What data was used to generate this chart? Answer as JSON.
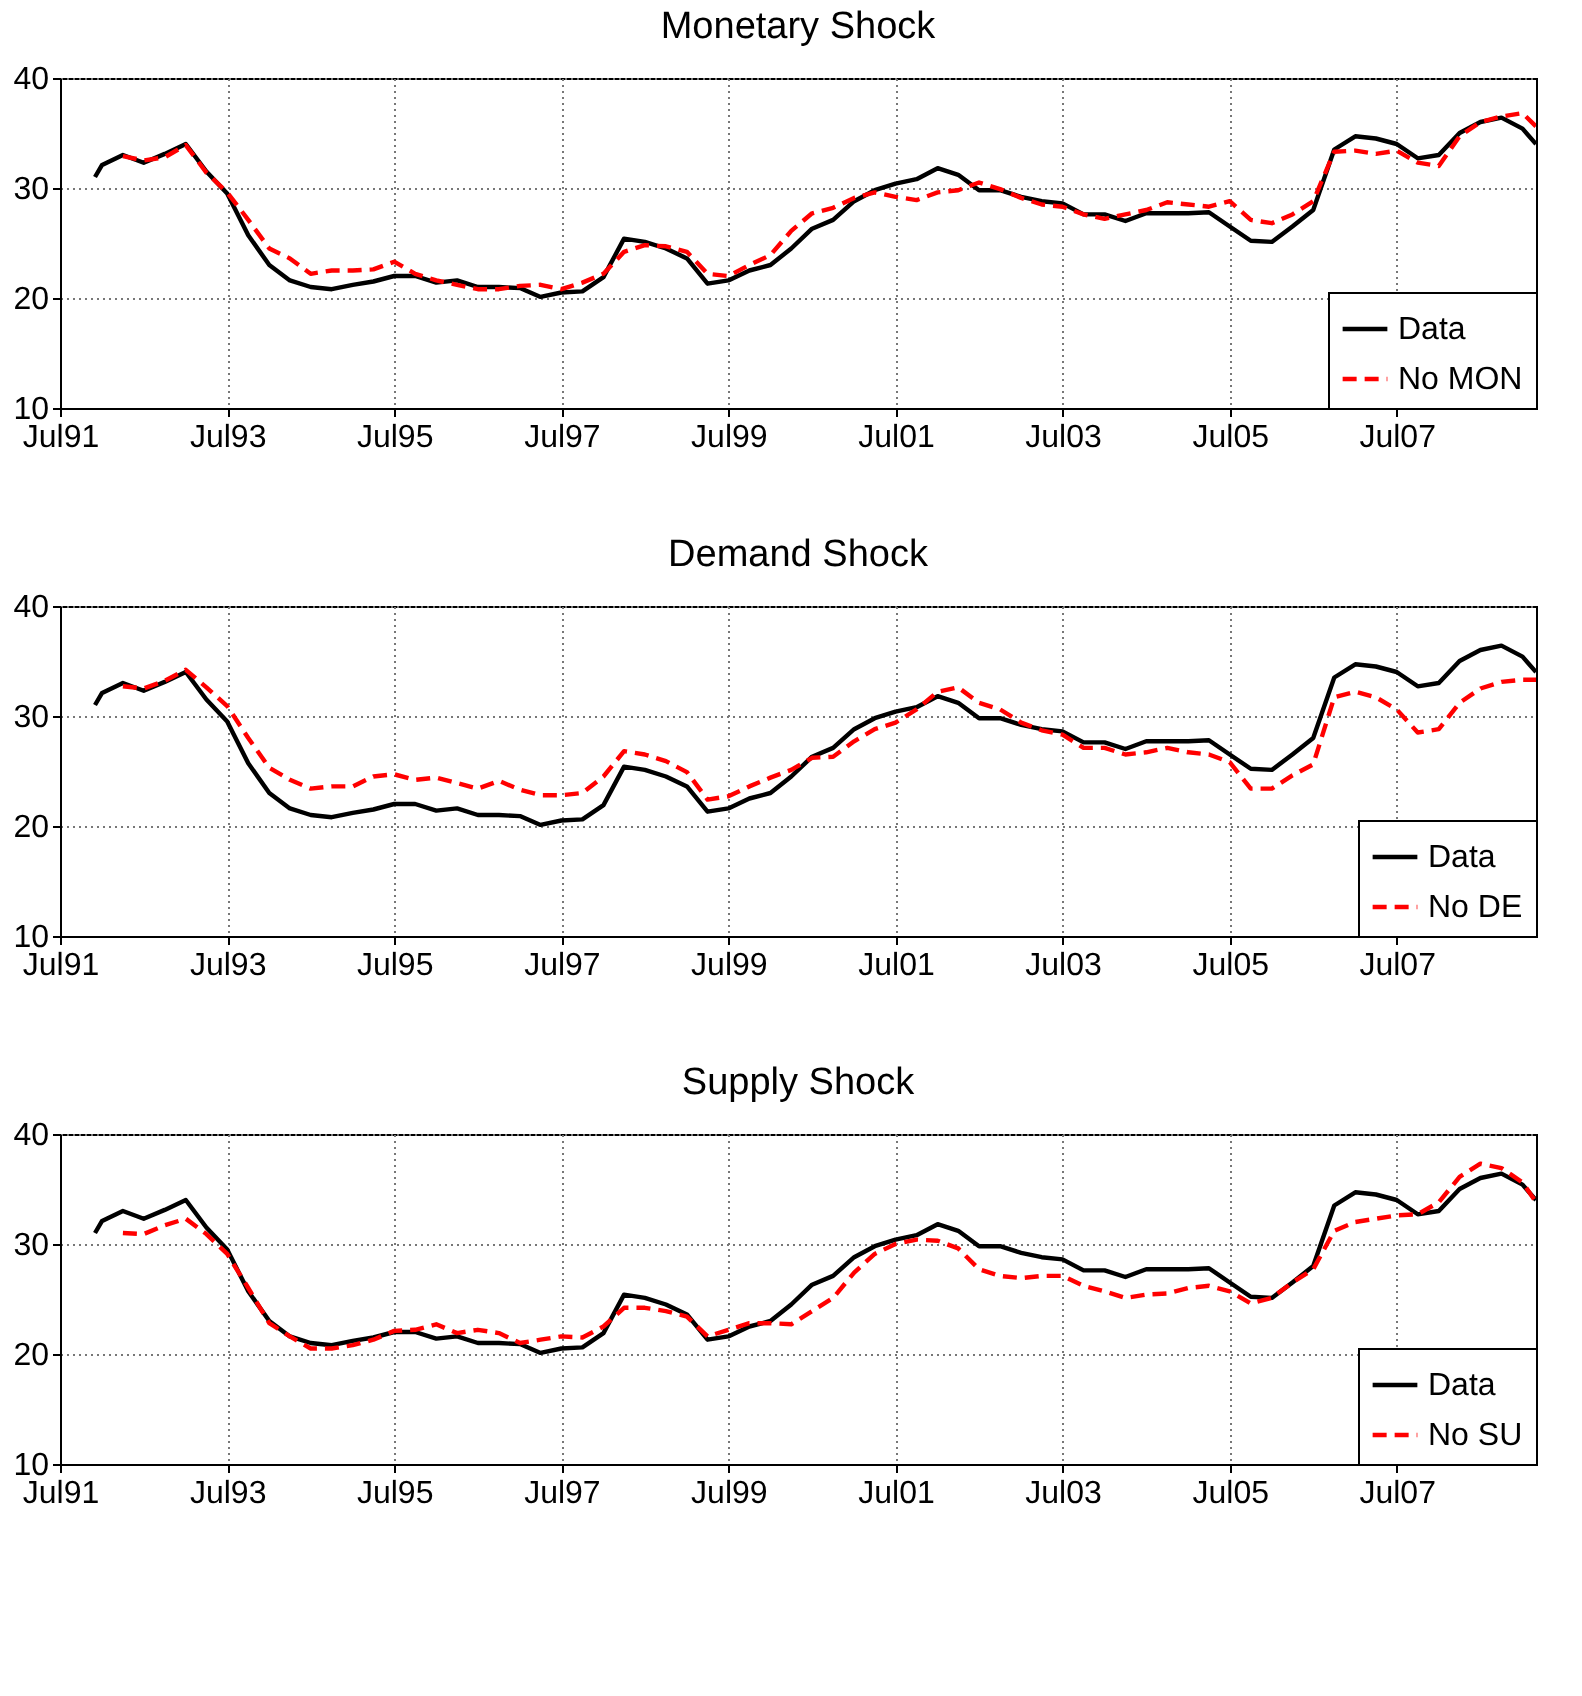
{
  "chart_data": [
    {
      "type": "line",
      "title": "Monetary Shock",
      "xlim": [
        "1991-07",
        "2009-03"
      ],
      "ylim": [
        10,
        40
      ],
      "yticks": [
        10,
        20,
        30,
        40
      ],
      "xticks": [
        {
          "value": "1991-07",
          "label": "Jul91"
        },
        {
          "value": "1993-07",
          "label": "Jul93"
        },
        {
          "value": "1995-07",
          "label": "Jul95"
        },
        {
          "value": "1997-07",
          "label": "Jul97"
        },
        {
          "value": "1999-07",
          "label": "Jul99"
        },
        {
          "value": "2001-07",
          "label": "Jul01"
        },
        {
          "value": "2003-07",
          "label": "Jul03"
        },
        {
          "value": "2005-07",
          "label": "Jul05"
        },
        {
          "value": "2007-07",
          "label": "Jul07"
        }
      ],
      "grid": true,
      "legend": "bottom right",
      "series": [
        {
          "name": "Data",
          "color": "#000000",
          "line_style": "solid",
          "x": [
            "1991-12",
            "1992-01",
            "1992-04",
            "1992-07",
            "1992-10",
            "1993-01",
            "1993-04",
            "1993-07",
            "1993-10",
            "1994-01",
            "1994-04",
            "1994-07",
            "1994-10",
            "1995-01",
            "1995-04",
            "1995-07",
            "1995-10",
            "1996-01",
            "1996-04",
            "1996-07",
            "1996-10",
            "1997-01",
            "1997-04",
            "1997-07",
            "1997-10",
            "1998-01",
            "1998-04",
            "1998-07",
            "1998-10",
            "1999-01",
            "1999-04",
            "1999-07",
            "1999-10",
            "2000-01",
            "2000-04",
            "2000-07",
            "2000-10",
            "2001-01",
            "2001-04",
            "2001-07",
            "2001-10",
            "2002-01",
            "2002-04",
            "2002-07",
            "2002-10",
            "2003-01",
            "2003-04",
            "2003-07",
            "2003-10",
            "2004-01",
            "2004-04",
            "2004-07",
            "2004-10",
            "2005-01",
            "2005-04",
            "2005-07",
            "2005-10",
            "2006-01",
            "2006-04",
            "2006-07",
            "2006-10",
            "2007-01",
            "2007-04",
            "2007-07",
            "2007-10",
            "2008-01",
            "2008-04",
            "2008-07",
            "2008-10",
            "2009-01",
            "2009-03"
          ],
          "values": [
            31.0,
            32.1,
            33.0,
            32.3,
            33.1,
            34.0,
            31.5,
            29.5,
            25.7,
            23.0,
            21.6,
            21.0,
            20.8,
            21.2,
            21.5,
            22.0,
            22.0,
            21.4,
            21.6,
            21.0,
            21.0,
            20.9,
            20.1,
            20.5,
            20.6,
            21.9,
            25.4,
            25.1,
            24.5,
            23.6,
            21.3,
            21.6,
            22.5,
            23.0,
            24.5,
            26.3,
            27.1,
            28.8,
            29.8,
            30.4,
            30.8,
            31.8,
            31.2,
            29.8,
            29.8,
            29.2,
            28.8,
            28.6,
            27.6,
            27.6,
            27.0,
            27.7,
            27.7,
            27.7,
            27.8,
            26.5,
            25.2,
            25.1,
            26.5,
            28.0,
            33.5,
            34.7,
            34.5,
            34.0,
            32.7,
            33.0,
            35.0,
            36.0,
            36.4,
            35.4,
            34.0
          ]
        },
        {
          "name": "No MON",
          "color": "#ff0000",
          "line_style": "dashed",
          "x": [
            "1992-04",
            "1992-07",
            "1992-10",
            "1993-01",
            "1993-04",
            "1993-07",
            "1993-10",
            "1994-01",
            "1994-04",
            "1994-07",
            "1994-10",
            "1995-01",
            "1995-04",
            "1995-07",
            "1995-10",
            "1996-01",
            "1996-04",
            "1996-07",
            "1996-10",
            "1997-01",
            "1997-04",
            "1997-07",
            "1997-10",
            "1998-01",
            "1998-04",
            "1998-07",
            "1998-10",
            "1999-01",
            "1999-04",
            "1999-07",
            "1999-10",
            "2000-01",
            "2000-04",
            "2000-07",
            "2000-10",
            "2001-01",
            "2001-04",
            "2001-07",
            "2001-10",
            "2002-01",
            "2002-04",
            "2002-07",
            "2002-10",
            "2003-01",
            "2003-04",
            "2003-07",
            "2003-10",
            "2004-01",
            "2004-04",
            "2004-07",
            "2004-10",
            "2005-01",
            "2005-04",
            "2005-07",
            "2005-10",
            "2006-01",
            "2006-04",
            "2006-07",
            "2006-10",
            "2007-01",
            "2007-04",
            "2007-07",
            "2007-10",
            "2008-01",
            "2008-04",
            "2008-07",
            "2008-10",
            "2009-01",
            "2009-03"
          ],
          "values": [
            32.9,
            32.5,
            32.8,
            33.9,
            31.4,
            29.6,
            27.1,
            24.5,
            23.6,
            22.2,
            22.5,
            22.5,
            22.6,
            23.3,
            22.2,
            21.6,
            21.2,
            20.8,
            20.8,
            21.1,
            21.2,
            20.8,
            21.4,
            22.2,
            24.2,
            24.8,
            24.7,
            24.2,
            22.2,
            22.0,
            23.0,
            23.9,
            26.1,
            27.7,
            28.2,
            29.1,
            29.6,
            29.2,
            28.9,
            29.6,
            29.8,
            30.5,
            29.9,
            29.1,
            28.5,
            28.3,
            27.6,
            27.2,
            27.6,
            28.0,
            28.7,
            28.5,
            28.3,
            28.8,
            27.1,
            26.8,
            27.6,
            28.8,
            33.3,
            33.4,
            33.1,
            33.4,
            32.3,
            32.0,
            34.7,
            36.0,
            36.5,
            36.8,
            35.6
          ]
        }
      ]
    },
    {
      "type": "line",
      "title": "Demand Shock",
      "xlim": [
        "1991-07",
        "2009-03"
      ],
      "ylim": [
        10,
        40
      ],
      "yticks": [
        10,
        20,
        30,
        40
      ],
      "xticks": [
        {
          "value": "1991-07",
          "label": "Jul91"
        },
        {
          "value": "1993-07",
          "label": "Jul93"
        },
        {
          "value": "1995-07",
          "label": "Jul95"
        },
        {
          "value": "1997-07",
          "label": "Jul97"
        },
        {
          "value": "1999-07",
          "label": "Jul99"
        },
        {
          "value": "2001-07",
          "label": "Jul01"
        },
        {
          "value": "2003-07",
          "label": "Jul03"
        },
        {
          "value": "2005-07",
          "label": "Jul05"
        },
        {
          "value": "2007-07",
          "label": "Jul07"
        }
      ],
      "grid": true,
      "legend": "bottom right",
      "series": [
        {
          "name": "Data",
          "color": "#000000",
          "line_style": "solid",
          "x": [
            "1991-12",
            "1992-01",
            "1992-04",
            "1992-07",
            "1992-10",
            "1993-01",
            "1993-04",
            "1993-07",
            "1993-10",
            "1994-01",
            "1994-04",
            "1994-07",
            "1994-10",
            "1995-01",
            "1995-04",
            "1995-07",
            "1995-10",
            "1996-01",
            "1996-04",
            "1996-07",
            "1996-10",
            "1997-01",
            "1997-04",
            "1997-07",
            "1997-10",
            "1998-01",
            "1998-04",
            "1998-07",
            "1998-10",
            "1999-01",
            "1999-04",
            "1999-07",
            "1999-10",
            "2000-01",
            "2000-04",
            "2000-07",
            "2000-10",
            "2001-01",
            "2001-04",
            "2001-07",
            "2001-10",
            "2002-01",
            "2002-04",
            "2002-07",
            "2002-10",
            "2003-01",
            "2003-04",
            "2003-07",
            "2003-10",
            "2004-01",
            "2004-04",
            "2004-07",
            "2004-10",
            "2005-01",
            "2005-04",
            "2005-07",
            "2005-10",
            "2006-01",
            "2006-04",
            "2006-07",
            "2006-10",
            "2007-01",
            "2007-04",
            "2007-07",
            "2007-10",
            "2008-01",
            "2008-04",
            "2008-07",
            "2008-10",
            "2009-01",
            "2009-03"
          ],
          "values": [
            31.0,
            32.1,
            33.0,
            32.3,
            33.1,
            34.0,
            31.5,
            29.5,
            25.7,
            23.0,
            21.6,
            21.0,
            20.8,
            21.2,
            21.5,
            22.0,
            22.0,
            21.4,
            21.6,
            21.0,
            21.0,
            20.9,
            20.1,
            20.5,
            20.6,
            21.9,
            25.4,
            25.1,
            24.5,
            23.6,
            21.3,
            21.6,
            22.5,
            23.0,
            24.5,
            26.3,
            27.1,
            28.8,
            29.8,
            30.4,
            30.8,
            31.8,
            31.2,
            29.8,
            29.8,
            29.2,
            28.8,
            28.6,
            27.6,
            27.6,
            27.0,
            27.7,
            27.7,
            27.7,
            27.8,
            26.5,
            25.2,
            25.1,
            26.5,
            28.0,
            33.5,
            34.7,
            34.5,
            34.0,
            32.7,
            33.0,
            35.0,
            36.0,
            36.4,
            35.4,
            34.0
          ]
        },
        {
          "name": "No DE",
          "color": "#ff0000",
          "line_style": "dashed",
          "x": [
            "1992-04",
            "1992-07",
            "1992-10",
            "1993-01",
            "1993-04",
            "1993-07",
            "1993-10",
            "1994-01",
            "1994-04",
            "1994-07",
            "1994-10",
            "1995-01",
            "1995-04",
            "1995-07",
            "1995-10",
            "1996-01",
            "1996-04",
            "1996-07",
            "1996-10",
            "1997-01",
            "1997-04",
            "1997-07",
            "1997-10",
            "1998-01",
            "1998-04",
            "1998-07",
            "1998-10",
            "1999-01",
            "1999-04",
            "1999-07",
            "1999-10",
            "2000-01",
            "2000-04",
            "2000-07",
            "2000-10",
            "2001-01",
            "2001-04",
            "2001-07",
            "2001-10",
            "2002-01",
            "2002-04",
            "2002-07",
            "2002-10",
            "2003-01",
            "2003-04",
            "2003-07",
            "2003-10",
            "2004-01",
            "2004-04",
            "2004-07",
            "2004-10",
            "2005-01",
            "2005-04",
            "2005-07",
            "2005-10",
            "2006-01",
            "2006-04",
            "2006-07",
            "2006-10",
            "2007-01",
            "2007-04",
            "2007-07",
            "2007-10",
            "2008-01",
            "2008-04",
            "2008-07",
            "2008-10",
            "2009-01",
            "2009-03"
          ],
          "values": [
            32.7,
            32.5,
            33.2,
            34.2,
            32.6,
            30.9,
            28.0,
            25.3,
            24.2,
            23.4,
            23.6,
            23.6,
            24.5,
            24.7,
            24.2,
            24.4,
            23.9,
            23.4,
            24.1,
            23.3,
            22.8,
            22.8,
            23.0,
            24.5,
            26.8,
            26.5,
            25.9,
            24.9,
            22.4,
            22.7,
            23.6,
            24.4,
            25.1,
            26.2,
            26.3,
            27.7,
            28.8,
            29.4,
            30.6,
            32.2,
            32.6,
            31.2,
            30.6,
            29.4,
            28.7,
            28.3,
            27.1,
            27.1,
            26.5,
            26.7,
            27.1,
            26.7,
            26.5,
            25.8,
            23.4,
            23.4,
            24.6,
            25.6,
            31.7,
            32.2,
            31.7,
            30.6,
            28.5,
            28.8,
            31.2,
            32.5,
            33.1,
            33.3,
            33.3
          ]
        }
      ]
    },
    {
      "type": "line",
      "title": "Supply Shock",
      "xlim": [
        "1991-07",
        "2009-03"
      ],
      "ylim": [
        10,
        40
      ],
      "yticks": [
        10,
        20,
        30,
        40
      ],
      "xticks": [
        {
          "value": "1991-07",
          "label": "Jul91"
        },
        {
          "value": "1993-07",
          "label": "Jul93"
        },
        {
          "value": "1995-07",
          "label": "Jul95"
        },
        {
          "value": "1997-07",
          "label": "Jul97"
        },
        {
          "value": "1999-07",
          "label": "Jul99"
        },
        {
          "value": "2001-07",
          "label": "Jul01"
        },
        {
          "value": "2003-07",
          "label": "Jul03"
        },
        {
          "value": "2005-07",
          "label": "Jul05"
        },
        {
          "value": "2007-07",
          "label": "Jul07"
        }
      ],
      "grid": true,
      "legend": "bottom right",
      "series": [
        {
          "name": "Data",
          "color": "#000000",
          "line_style": "solid",
          "x": [
            "1991-12",
            "1992-01",
            "1992-04",
            "1992-07",
            "1992-10",
            "1993-01",
            "1993-04",
            "1993-07",
            "1993-10",
            "1994-01",
            "1994-04",
            "1994-07",
            "1994-10",
            "1995-01",
            "1995-04",
            "1995-07",
            "1995-10",
            "1996-01",
            "1996-04",
            "1996-07",
            "1996-10",
            "1997-01",
            "1997-04",
            "1997-07",
            "1997-10",
            "1998-01",
            "1998-04",
            "1998-07",
            "1998-10",
            "1999-01",
            "1999-04",
            "1999-07",
            "1999-10",
            "2000-01",
            "2000-04",
            "2000-07",
            "2000-10",
            "2001-01",
            "2001-04",
            "2001-07",
            "2001-10",
            "2002-01",
            "2002-04",
            "2002-07",
            "2002-10",
            "2003-01",
            "2003-04",
            "2003-07",
            "2003-10",
            "2004-01",
            "2004-04",
            "2004-07",
            "2004-10",
            "2005-01",
            "2005-04",
            "2005-07",
            "2005-10",
            "2006-01",
            "2006-04",
            "2006-07",
            "2006-10",
            "2007-01",
            "2007-04",
            "2007-07",
            "2007-10",
            "2008-01",
            "2008-04",
            "2008-07",
            "2008-10",
            "2009-01",
            "2009-03"
          ],
          "values": [
            31.0,
            32.1,
            33.0,
            32.3,
            33.1,
            34.0,
            31.5,
            29.5,
            25.7,
            23.0,
            21.6,
            21.0,
            20.8,
            21.2,
            21.5,
            22.0,
            22.0,
            21.4,
            21.6,
            21.0,
            21.0,
            20.9,
            20.1,
            20.5,
            20.6,
            21.9,
            25.4,
            25.1,
            24.5,
            23.6,
            21.3,
            21.6,
            22.5,
            23.0,
            24.5,
            26.3,
            27.1,
            28.8,
            29.8,
            30.4,
            30.8,
            31.8,
            31.2,
            29.8,
            29.8,
            29.2,
            28.8,
            28.6,
            27.6,
            27.6,
            27.0,
            27.7,
            27.7,
            27.7,
            27.8,
            26.5,
            25.2,
            25.1,
            26.5,
            28.0,
            33.5,
            34.7,
            34.5,
            34.0,
            32.7,
            33.0,
            35.0,
            36.0,
            36.4,
            35.4,
            34.0
          ]
        },
        {
          "name": "No SU",
          "color": "#ff0000",
          "line_style": "dashed",
          "x": [
            "1992-04",
            "1992-07",
            "1992-10",
            "1993-01",
            "1993-04",
            "1993-07",
            "1993-10",
            "1994-01",
            "1994-04",
            "1994-07",
            "1994-10",
            "1995-01",
            "1995-04",
            "1995-07",
            "1995-10",
            "1996-01",
            "1996-04",
            "1996-07",
            "1996-10",
            "1997-01",
            "1997-04",
            "1997-07",
            "1997-10",
            "1998-01",
            "1998-04",
            "1998-07",
            "1998-10",
            "1999-01",
            "1999-04",
            "1999-07",
            "1999-10",
            "2000-01",
            "2000-04",
            "2000-07",
            "2000-10",
            "2001-01",
            "2001-04",
            "2001-07",
            "2001-10",
            "2002-01",
            "2002-04",
            "2002-07",
            "2002-10",
            "2003-01",
            "2003-04",
            "2003-07",
            "2003-10",
            "2004-01",
            "2004-04",
            "2004-07",
            "2004-10",
            "2005-01",
            "2005-04",
            "2005-07",
            "2005-10",
            "2006-01",
            "2006-04",
            "2006-07",
            "2006-10",
            "2007-01",
            "2007-04",
            "2007-07",
            "2007-10",
            "2008-01",
            "2008-04",
            "2008-07",
            "2008-10",
            "2009-01",
            "2009-03"
          ],
          "values": [
            31.0,
            30.9,
            31.7,
            32.3,
            30.9,
            29.1,
            26.0,
            22.8,
            21.6,
            20.5,
            20.5,
            20.8,
            21.3,
            22.1,
            22.2,
            22.7,
            21.9,
            22.2,
            21.9,
            21.0,
            21.3,
            21.6,
            21.5,
            22.5,
            24.2,
            24.2,
            23.9,
            23.4,
            21.6,
            22.2,
            22.8,
            22.8,
            22.7,
            23.9,
            25.1,
            27.4,
            29.1,
            30.0,
            30.4,
            30.3,
            29.6,
            27.7,
            27.1,
            26.9,
            27.1,
            27.1,
            26.2,
            25.7,
            25.1,
            25.4,
            25.5,
            26.0,
            26.2,
            25.7,
            24.6,
            25.1,
            26.5,
            27.7,
            31.2,
            32.0,
            32.3,
            32.6,
            32.7,
            33.8,
            36.1,
            37.3,
            36.9,
            35.6,
            33.8
          ]
        }
      ]
    }
  ]
}
